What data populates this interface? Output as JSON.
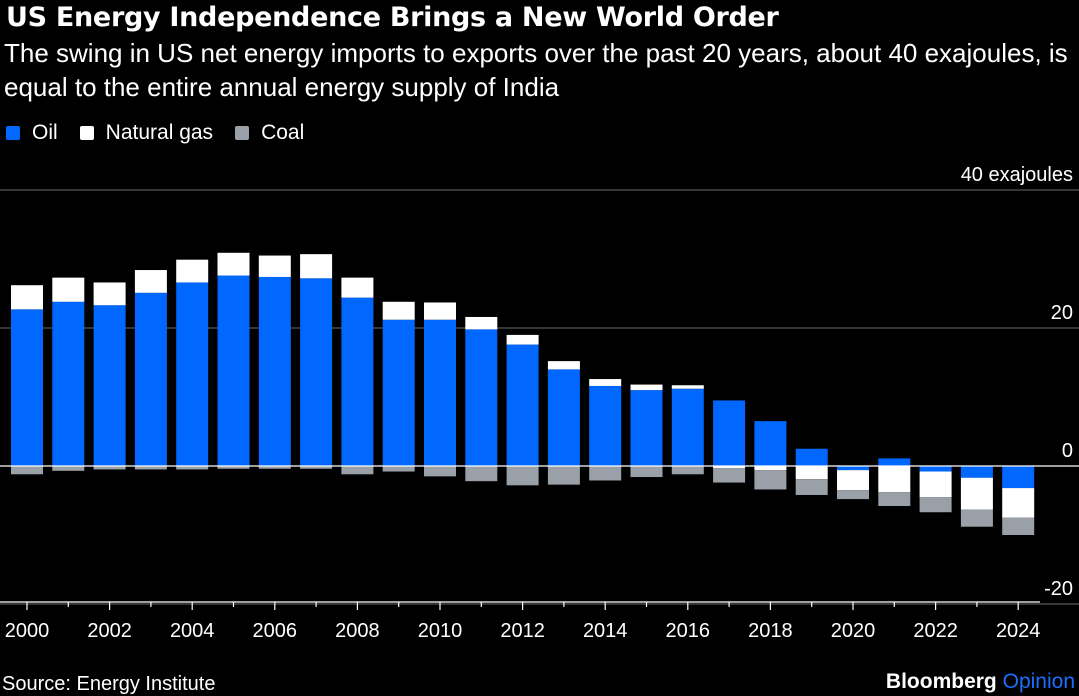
{
  "header": {
    "title": "US Energy Independence Brings a New World Order",
    "subtitle": "The swing in US net energy imports to exports over the past 20 years, about 40 exajoules, is equal to the entire annual energy supply of India"
  },
  "legend": [
    {
      "name": "Oil",
      "color": "#0068ff"
    },
    {
      "name": "Natural gas",
      "color": "#ffffff"
    },
    {
      "name": "Coal",
      "color": "#9aa0a8"
    }
  ],
  "footer": {
    "source": "Source: Energy Institute",
    "brand_name": "Bloomberg",
    "brand_suffix": "Opinion"
  },
  "chart_data": {
    "type": "bar",
    "stacked": true,
    "categories": [
      2000,
      2001,
      2002,
      2003,
      2004,
      2005,
      2006,
      2007,
      2008,
      2009,
      2010,
      2011,
      2012,
      2013,
      2014,
      2015,
      2016,
      2017,
      2018,
      2019,
      2020,
      2021,
      2022,
      2023,
      2024
    ],
    "x_tick_labels": [
      "2000",
      "2002",
      "2004",
      "2006",
      "2008",
      "2010",
      "2012",
      "2014",
      "2016",
      "2018",
      "2020",
      "2022",
      "2024"
    ],
    "series": [
      {
        "name": "Oil",
        "color": "#0068ff",
        "values": [
          22.7,
          23.8,
          23.3,
          25.1,
          26.6,
          27.6,
          27.4,
          27.2,
          24.4,
          21.2,
          21.2,
          19.8,
          17.6,
          14.0,
          11.6,
          11.0,
          11.2,
          9.5,
          6.5,
          2.5,
          -0.6,
          1.1,
          -0.8,
          -1.7,
          -3.2
        ]
      },
      {
        "name": "Natural gas",
        "color": "#ffffff",
        "values": [
          3.5,
          3.5,
          3.3,
          3.3,
          3.3,
          3.3,
          3.1,
          3.5,
          2.9,
          2.6,
          2.5,
          1.8,
          1.4,
          1.2,
          1.0,
          0.8,
          0.5,
          -0.3,
          -0.6,
          -1.9,
          -2.9,
          -3.8,
          -3.7,
          -4.6,
          -4.3
        ]
      },
      {
        "name": "Coal",
        "color": "#9aa0a8",
        "values": [
          -1.2,
          -0.7,
          -0.5,
          -0.5,
          -0.5,
          -0.4,
          -0.4,
          -0.4,
          -1.2,
          -0.8,
          -1.5,
          -2.2,
          -2.8,
          -2.7,
          -2.1,
          -1.6,
          -1.2,
          -2.1,
          -2.8,
          -2.3,
          -1.3,
          -2.0,
          -2.2,
          -2.5,
          -2.5
        ]
      }
    ],
    "y_ticks": [
      {
        "value": 40,
        "label": "40 exajoules"
      },
      {
        "value": 20,
        "label": "20"
      },
      {
        "value": 0,
        "label": "0"
      },
      {
        "value": -20,
        "label": "-20"
      }
    ],
    "ylim": [
      -20,
      40
    ],
    "grid": true,
    "legend_position": "top-left"
  }
}
